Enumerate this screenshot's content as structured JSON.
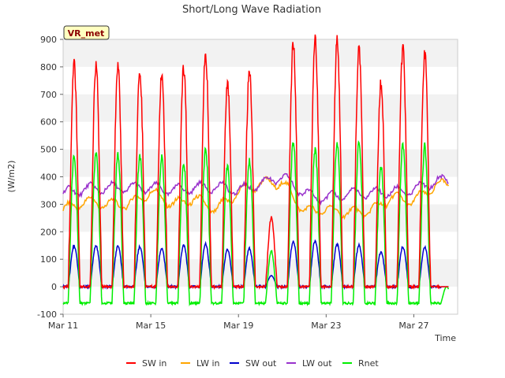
{
  "chart_data": {
    "type": "line",
    "title": "Short/Long Wave Radiation",
    "xlabel": "Time",
    "ylabel": "(W/m2)",
    "station_label": "VR_met",
    "xlim": [
      "2023-03-11",
      "2023-03-29"
    ],
    "ylim": [
      -100,
      900
    ],
    "yticks": [
      -100,
      0,
      100,
      200,
      300,
      400,
      500,
      600,
      700,
      800,
      900
    ],
    "xticks": [
      {
        "date": "2023-03-11",
        "label": "Mar 11"
      },
      {
        "date": "2023-03-15",
        "label": "Mar 15"
      },
      {
        "date": "2023-03-19",
        "label": "Mar 19"
      },
      {
        "date": "2023-03-23",
        "label": "Mar 23"
      },
      {
        "date": "2023-03-27",
        "label": "Mar 27"
      }
    ],
    "grid": "horizontal bands",
    "legend_position": "bottom",
    "colors": {
      "SW in": "#ff0000",
      "LW in": "#ffa500",
      "SW out": "#0000cc",
      "LW out": "#9932cc",
      "Rnet": "#00ee00"
    },
    "series": [
      {
        "name": "SW in",
        "daily_peak_dates": [
          "2023-03-11",
          "2023-03-12",
          "2023-03-13",
          "2023-03-14",
          "2023-03-15",
          "2023-03-16",
          "2023-03-17",
          "2023-03-18",
          "2023-03-19",
          "2023-03-20",
          "2023-03-21",
          "2023-03-22",
          "2023-03-23",
          "2023-03-24",
          "2023-03-25",
          "2023-03-26",
          "2023-03-27",
          "2023-03-28"
        ],
        "daily_peaks": [
          805,
          808,
          805,
          780,
          770,
          795,
          850,
          740,
          790,
          250,
          880,
          895,
          890,
          870,
          740,
          865,
          850,
          0
        ],
        "night_value": 0
      },
      {
        "name": "LW in",
        "x": [
          "2023-03-11",
          "2023-03-12",
          "2023-03-13",
          "2023-03-14",
          "2023-03-15",
          "2023-03-16",
          "2023-03-17",
          "2023-03-18",
          "2023-03-19",
          "2023-03-20",
          "2023-03-21",
          "2023-03-22",
          "2023-03-23",
          "2023-03-24",
          "2023-03-25",
          "2023-03-26",
          "2023-03-27",
          "2023-03-28"
        ],
        "y": [
          280,
          310,
          300,
          300,
          345,
          300,
          320,
          280,
          345,
          375,
          380,
          275,
          280,
          270,
          275,
          325,
          310,
          370
        ]
      },
      {
        "name": "SW out",
        "daily_peak_dates": [
          "2023-03-11",
          "2023-03-12",
          "2023-03-13",
          "2023-03-14",
          "2023-03-15",
          "2023-03-16",
          "2023-03-17",
          "2023-03-18",
          "2023-03-19",
          "2023-03-20",
          "2023-03-21",
          "2023-03-22",
          "2023-03-23",
          "2023-03-24",
          "2023-03-25",
          "2023-03-26",
          "2023-03-27",
          "2023-03-28"
        ],
        "daily_peaks": [
          148,
          150,
          148,
          145,
          140,
          150,
          155,
          135,
          140,
          40,
          165,
          168,
          155,
          150,
          125,
          145,
          145,
          0
        ],
        "night_value": 0
      },
      {
        "name": "LW out",
        "x": [
          "2023-03-11",
          "2023-03-12",
          "2023-03-13",
          "2023-03-14",
          "2023-03-15",
          "2023-03-16",
          "2023-03-17",
          "2023-03-18",
          "2023-03-19",
          "2023-03-20",
          "2023-03-21",
          "2023-03-22",
          "2023-03-23",
          "2023-03-24",
          "2023-03-25",
          "2023-03-26",
          "2023-03-27",
          "2023-03-28"
        ],
        "y": [
          340,
          355,
          360,
          360,
          360,
          350,
          360,
          365,
          350,
          375,
          400,
          340,
          320,
          340,
          340,
          345,
          350,
          385
        ]
      },
      {
        "name": "Rnet",
        "daily_peak_dates": [
          "2023-03-11",
          "2023-03-12",
          "2023-03-13",
          "2023-03-14",
          "2023-03-15",
          "2023-03-16",
          "2023-03-17",
          "2023-03-18",
          "2023-03-19",
          "2023-03-20",
          "2023-03-21",
          "2023-03-22",
          "2023-03-23",
          "2023-03-24",
          "2023-03-25",
          "2023-03-26",
          "2023-03-27",
          "2023-03-28"
        ],
        "daily_peaks": [
          475,
          485,
          480,
          475,
          470,
          450,
          500,
          440,
          460,
          130,
          525,
          500,
          525,
          520,
          440,
          520,
          510,
          0
        ],
        "night_value": -60
      }
    ]
  }
}
